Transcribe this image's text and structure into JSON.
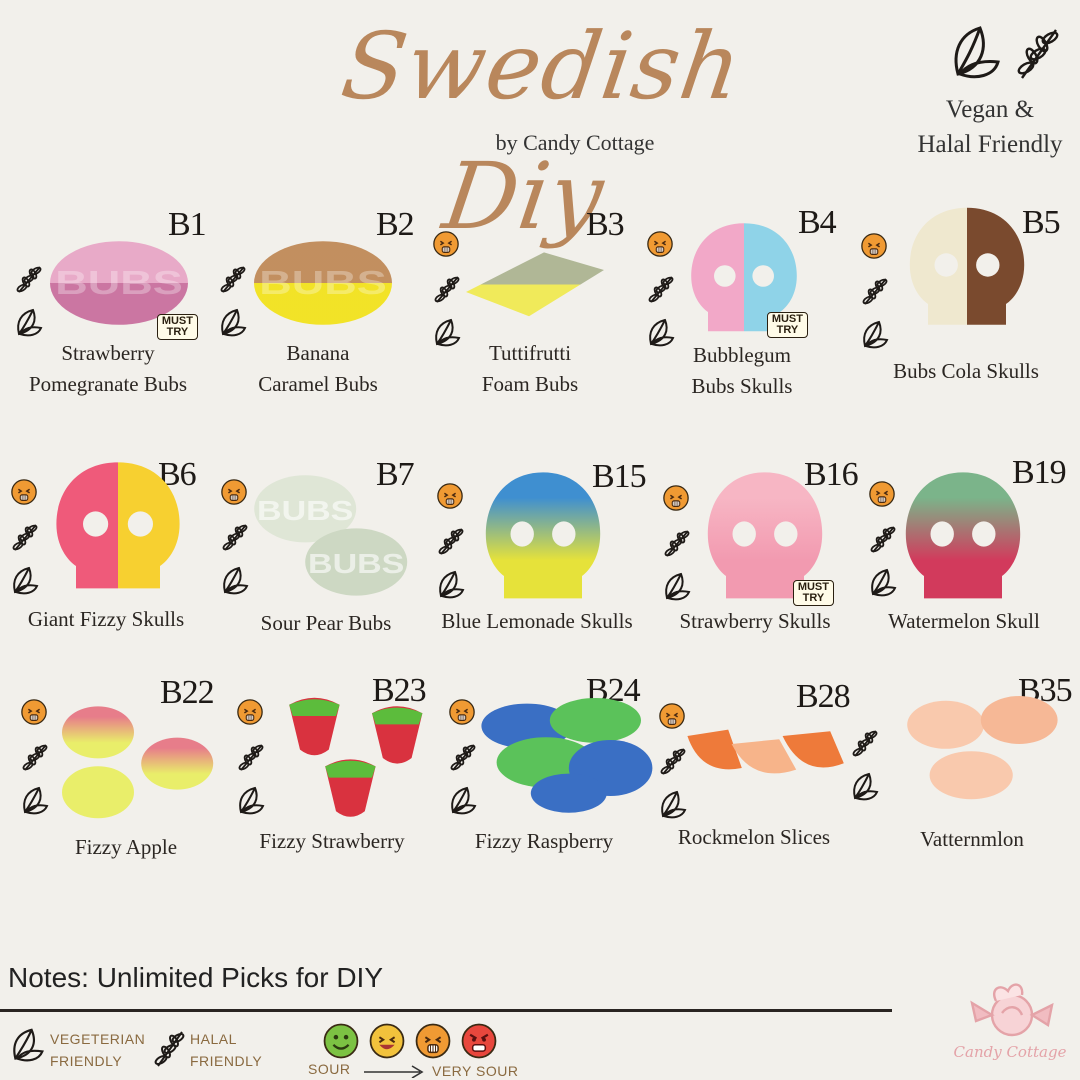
{
  "header": {
    "title": "Swedish Diy",
    "byline": "by Candy Cottage",
    "badge_line1": "Vegan &",
    "badge_line2": "Halal Friendly"
  },
  "candies": [
    {
      "code": "B1",
      "name1": "Strawberry",
      "name2": "Pomegranate Bubs",
      "must_try": true,
      "sour": false,
      "colors": [
        "#e8a6c6",
        "#c9709e"
      ],
      "shape": "bubs"
    },
    {
      "code": "B2",
      "name1": "Banana",
      "name2": "Caramel Bubs",
      "must_try": false,
      "sour": false,
      "colors": [
        "#c08a58",
        "#f2e21d"
      ],
      "shape": "bubs"
    },
    {
      "code": "B3",
      "name1": "Tuttifrutti",
      "name2": "Foam Bubs",
      "must_try": false,
      "sour": true,
      "colors": [
        "#b0b796",
        "#f0ea5a"
      ],
      "shape": "diamond"
    },
    {
      "code": "B4",
      "name1": "Bubblegum",
      "name2": "Bubs Skulls",
      "must_try": true,
      "sour": true,
      "colors": [
        "#f2a8c8",
        "#8fd3e8"
      ],
      "shape": "skull-split"
    },
    {
      "code": "B5",
      "name1": "Bubs Cola Skulls",
      "name2": "",
      "must_try": false,
      "sour": true,
      "colors": [
        "#efe8cf",
        "#7a4a2e"
      ],
      "shape": "skull-split"
    },
    {
      "code": "B6",
      "name1": "Giant Fizzy Skulls",
      "name2": "",
      "must_try": false,
      "sour": true,
      "colors": [
        "#ef5a7a",
        "#f7d030"
      ],
      "shape": "skull-split"
    },
    {
      "code": "B7",
      "name1": "Sour Pear Bubs",
      "name2": "",
      "must_try": false,
      "sour": true,
      "colors": [
        "#dfe6d6",
        "#cdd8c3"
      ],
      "shape": "bubs-pair"
    },
    {
      "code": "B15",
      "name1": "Blue Lemonade Skulls",
      "name2": "",
      "must_try": false,
      "sour": true,
      "colors": [
        "#3f8fd0",
        "#e6e23a"
      ],
      "shape": "skull-vert"
    },
    {
      "code": "B16",
      "name1": "Strawberry Skulls",
      "name2": "",
      "must_try": true,
      "sour": true,
      "colors": [
        "#f7b6c4",
        "#f29ab0"
      ],
      "shape": "skull-vert"
    },
    {
      "code": "B19",
      "name1": "Watermelon Skull",
      "name2": "",
      "must_try": false,
      "sour": true,
      "colors": [
        "#7bb48a",
        "#d23a5c"
      ],
      "shape": "skull-vert"
    },
    {
      "code": "B22",
      "name1": "Fizzy Apple",
      "name2": "",
      "must_try": false,
      "sour": true,
      "colors": [
        "#e77d8a",
        "#e9ee6a"
      ],
      "shape": "apples"
    },
    {
      "code": "B23",
      "name1": "Fizzy Strawberry",
      "name2": "",
      "must_try": false,
      "sour": true,
      "colors": [
        "#d9323f",
        "#5cbc3c"
      ],
      "shape": "strawberries"
    },
    {
      "code": "B24",
      "name1": "Fizzy Raspberry",
      "name2": "",
      "must_try": false,
      "sour": true,
      "colors": [
        "#3a6fc4",
        "#5bc25a"
      ],
      "shape": "raspberries"
    },
    {
      "code": "B28",
      "name1": "Rockmelon Slices",
      "name2": "",
      "must_try": false,
      "sour": true,
      "colors": [
        "#f7b48a",
        "#ee7a3a"
      ],
      "shape": "slices"
    },
    {
      "code": "B35",
      "name1": "Vatternmlon",
      "name2": "",
      "must_try": false,
      "sour": false,
      "colors": [
        "#f9c9ad",
        "#f6b896"
      ],
      "shape": "slices-light"
    }
  ],
  "stamp": {
    "line1": "MUST",
    "line2": "TRY"
  },
  "notes": "Notes: Unlimited Picks for DIY",
  "legend": {
    "veg_line1": "VEGETERIAN",
    "veg_line2": "FRIENDLY",
    "halal_line1": "HALAL",
    "halal_line2": "FRIENDLY",
    "scale_left": "SOUR",
    "scale_right": "VERY SOUR",
    "scale_colors": [
      "#7cc243",
      "#f2c23c",
      "#f09a33",
      "#e8473d"
    ]
  },
  "brand": {
    "name": "Candy Cottage",
    "color": "#e4a3a8"
  }
}
